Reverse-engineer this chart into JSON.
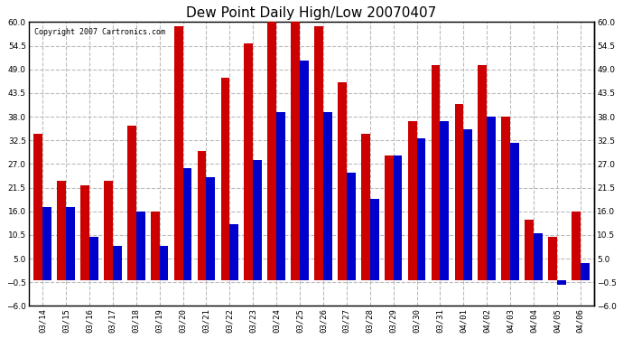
{
  "title": "Dew Point Daily High/Low 20070407",
  "copyright": "Copyright 2007 Cartronics.com",
  "dates": [
    "03/14",
    "03/15",
    "03/16",
    "03/17",
    "03/18",
    "03/19",
    "03/20",
    "03/21",
    "03/22",
    "03/23",
    "03/24",
    "03/25",
    "03/26",
    "03/27",
    "03/28",
    "03/29",
    "03/30",
    "03/31",
    "04/01",
    "04/02",
    "04/03",
    "04/04",
    "04/05",
    "04/06"
  ],
  "highs": [
    34,
    23,
    22,
    23,
    36,
    16,
    59,
    30,
    47,
    55,
    61,
    60,
    59,
    46,
    34,
    29,
    37,
    50,
    41,
    50,
    38,
    14,
    10,
    16
  ],
  "lows": [
    17,
    17,
    10,
    8,
    16,
    8,
    26,
    24,
    13,
    28,
    39,
    51,
    39,
    25,
    19,
    29,
    33,
    37,
    35,
    38,
    32,
    11,
    -1,
    4
  ],
  "high_color": "#cc0000",
  "low_color": "#0000cc",
  "background_color": "#ffffff",
  "grid_color": "#bbbbbb",
  "ylim_min": -6.0,
  "ylim_max": 60.0,
  "yticks": [
    -6.0,
    -0.5,
    5.0,
    10.5,
    16.0,
    21.5,
    27.0,
    32.5,
    38.0,
    43.5,
    49.0,
    54.5,
    60.0
  ],
  "bar_width": 0.38,
  "title_fontsize": 11,
  "tick_fontsize": 6.5,
  "copyright_fontsize": 6,
  "figsize": [
    6.9,
    3.75
  ],
  "dpi": 100
}
